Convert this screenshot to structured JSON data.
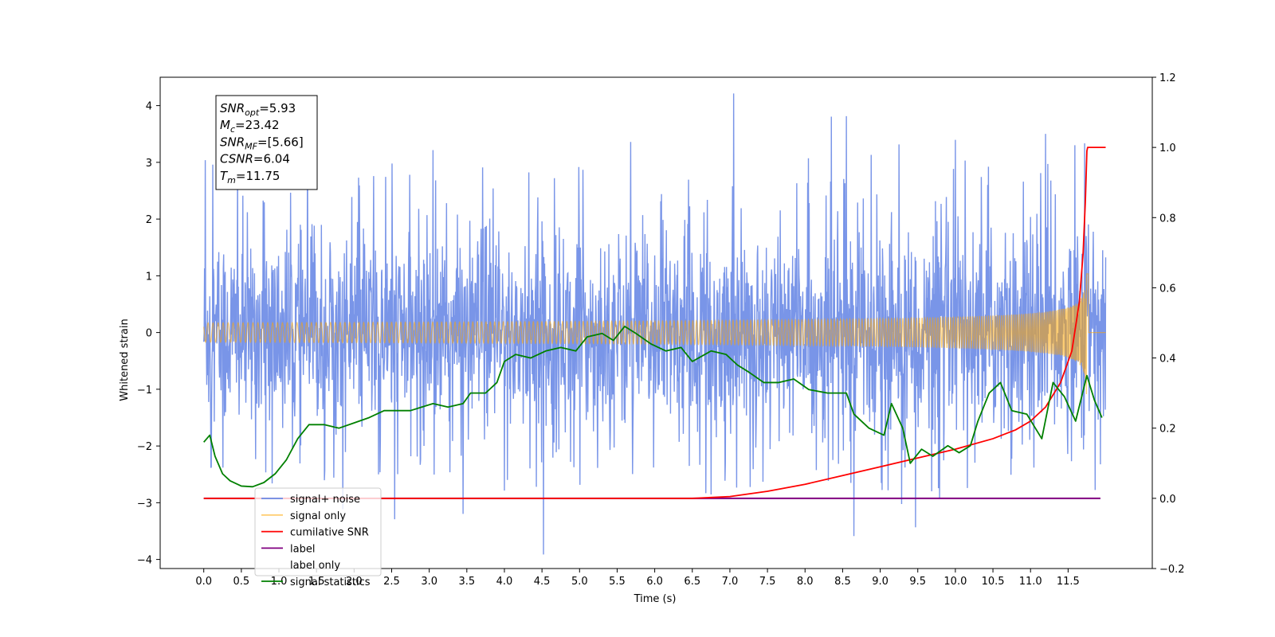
{
  "chart_data": {
    "type": "line",
    "xlabel": "Time (s)",
    "ylabel": "Whitened strain",
    "y2label": "",
    "xlim": [
      -0.58,
      12.62
    ],
    "ylim": [
      -4.16,
      4.5
    ],
    "y2lim": [
      -0.2,
      1.2
    ],
    "xticks": [
      "0.0",
      "0.5",
      "1.0",
      "1.5",
      "2.0",
      "2.5",
      "3.0",
      "3.5",
      "4.0",
      "4.5",
      "5.0",
      "5.5",
      "6.0",
      "6.5",
      "7.0",
      "7.5",
      "8.0",
      "8.5",
      "9.0",
      "9.5",
      "10.0",
      "10.5",
      "11.0",
      "11.5"
    ],
    "yticks": [
      "4",
      "3",
      "2",
      "1",
      "0",
      "−1",
      "−2",
      "−3",
      "−4"
    ],
    "y2ticks": [
      "1.2",
      "1.0",
      "0.8",
      "0.6",
      "0.4",
      "0.2",
      "0.0",
      "−0.2"
    ],
    "grid": false,
    "legend_position": "lower-left",
    "annotation": {
      "lines": [
        {
          "sym": "SNR",
          "sub": "opt",
          "value": "=5.93"
        },
        {
          "sym": "M",
          "sub": "c",
          "value": "=23.42"
        },
        {
          "sym": "SNR",
          "sub": "MF",
          "value": "=[5.66]"
        },
        {
          "sym": "CSNR",
          "sub": "",
          "value": "=6.04"
        },
        {
          "sym": "T",
          "sub": "m",
          "value": "=11.75"
        }
      ]
    },
    "series": [
      {
        "name": "signal+ noise",
        "color": "#6a8ae6",
        "axis": "left",
        "description_type": "noise",
        "x_range": [
          0.0,
          12.0
        ],
        "upper_envelope": 1.3,
        "lower_envelope": -1.3,
        "peaks": [
          [
            0.02,
            3.2
          ],
          [
            0.12,
            2.8
          ],
          [
            0.45,
            2.9
          ],
          [
            1.38,
            3.25
          ],
          [
            3.05,
            3.05
          ],
          [
            5.68,
            3.3
          ],
          [
            7.05,
            4.1
          ],
          [
            8.35,
            3.6
          ],
          [
            8.55,
            3.65
          ],
          [
            9.25,
            3.5
          ],
          [
            10.0,
            3.2
          ],
          [
            11.2,
            3.6
          ],
          [
            11.72,
            3.55
          ],
          [
            4.52,
            -3.75
          ],
          [
            8.65,
            -3.5
          ],
          [
            9.47,
            -3.2
          ],
          [
            3.45,
            -3.25
          ],
          [
            2.54,
            -3.2
          ],
          [
            6.75,
            -3.05
          ],
          [
            1.85,
            -2.95
          ]
        ]
      },
      {
        "name": "signal only",
        "color": "#ffa500",
        "axis": "left",
        "description_type": "chirp",
        "x_range": [
          0.0,
          12.0
        ],
        "merger_time": 11.75,
        "peak_amplitude": 1.4
      },
      {
        "name": "cumilative SNR",
        "color": "#ff0000",
        "axis": "right",
        "x": [
          0.0,
          6.5,
          7.0,
          7.5,
          8.0,
          8.5,
          9.0,
          9.5,
          10.0,
          10.5,
          10.8,
          11.0,
          11.2,
          11.4,
          11.55,
          11.65,
          11.7,
          11.73,
          11.75,
          11.76,
          11.77,
          12.0
        ],
        "values": [
          0.0,
          0.0,
          0.005,
          0.02,
          0.04,
          0.065,
          0.09,
          0.115,
          0.14,
          0.17,
          0.195,
          0.22,
          0.26,
          0.33,
          0.42,
          0.56,
          0.7,
          0.85,
          0.99,
          1.0,
          1.0,
          1.0
        ]
      },
      {
        "name": "label",
        "color": "#800080",
        "axis": "right",
        "x": [
          0.0,
          11.93
        ],
        "values": [
          0.0,
          0.0
        ]
      },
      {
        "name": "label only",
        "color": "#ffffff",
        "axis": "right",
        "hidden": true,
        "x": [],
        "values": []
      },
      {
        "name": "signal statistics",
        "color": "#008000",
        "axis": "right",
        "x": [
          0.0,
          0.08,
          0.15,
          0.25,
          0.35,
          0.5,
          0.65,
          0.8,
          0.95,
          1.1,
          1.25,
          1.4,
          1.6,
          1.8,
          2.0,
          2.2,
          2.4,
          2.55,
          2.75,
          2.9,
          3.05,
          3.25,
          3.45,
          3.55,
          3.75,
          3.9,
          4.0,
          4.15,
          4.35,
          4.55,
          4.75,
          4.95,
          5.1,
          5.3,
          5.45,
          5.6,
          5.75,
          5.95,
          6.15,
          6.35,
          6.5,
          6.75,
          6.95,
          7.1,
          7.25,
          7.45,
          7.65,
          7.85,
          8.05,
          8.3,
          8.55,
          8.65,
          8.85,
          9.05,
          9.15,
          9.3,
          9.4,
          9.55,
          9.7,
          9.9,
          10.05,
          10.2,
          10.3,
          10.45,
          10.6,
          10.75,
          10.95,
          11.15,
          11.3,
          11.45,
          11.6,
          11.75,
          11.85,
          11.95
        ],
        "values": [
          0.16,
          0.18,
          0.12,
          0.07,
          0.05,
          0.035,
          0.033,
          0.045,
          0.07,
          0.11,
          0.17,
          0.21,
          0.21,
          0.2,
          0.215,
          0.23,
          0.25,
          0.25,
          0.25,
          0.26,
          0.27,
          0.26,
          0.27,
          0.3,
          0.3,
          0.33,
          0.39,
          0.41,
          0.4,
          0.42,
          0.43,
          0.42,
          0.46,
          0.47,
          0.45,
          0.49,
          0.47,
          0.44,
          0.42,
          0.43,
          0.39,
          0.42,
          0.41,
          0.38,
          0.36,
          0.33,
          0.33,
          0.34,
          0.31,
          0.3,
          0.3,
          0.24,
          0.2,
          0.18,
          0.27,
          0.2,
          0.1,
          0.14,
          0.12,
          0.15,
          0.13,
          0.15,
          0.22,
          0.3,
          0.33,
          0.25,
          0.24,
          0.17,
          0.33,
          0.29,
          0.22,
          0.35,
          0.28,
          0.23
        ]
      }
    ]
  }
}
